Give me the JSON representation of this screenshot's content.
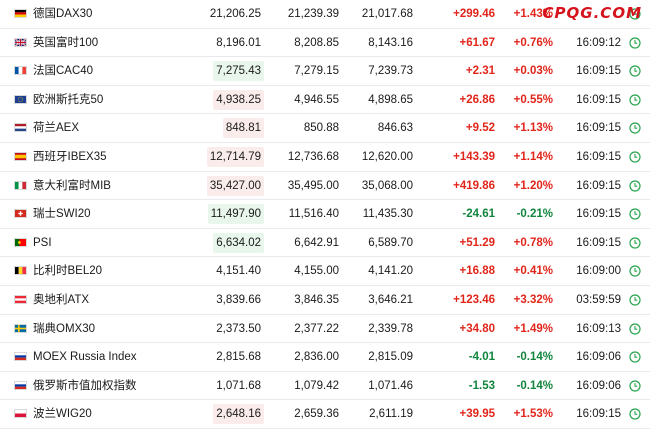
{
  "watermark": "CPQG.COM",
  "colors": {
    "up": "#e1251b",
    "down": "#11853d",
    "clock": "#2aa44f",
    "up_highlight": "#e9f6ec",
    "down_highlight": "#fbecec"
  },
  "rows": [
    {
      "flag": "de",
      "name": "德国DAX30",
      "last": "21,206.25",
      "high": "21,239.39",
      "low": "21,017.68",
      "change": "+299.46",
      "pct": "+1.43%",
      "time": "",
      "dir": "up",
      "hl": "none"
    },
    {
      "flag": "gb",
      "name": "英国富时100",
      "last": "8,196.01",
      "high": "8,208.85",
      "low": "8,143.16",
      "change": "+61.67",
      "pct": "+0.76%",
      "time": "16:09:12",
      "dir": "up",
      "hl": "none"
    },
    {
      "flag": "fr",
      "name": "法国CAC40",
      "last": "7,275.43",
      "high": "7,279.15",
      "low": "7,239.73",
      "change": "+2.31",
      "pct": "+0.03%",
      "time": "16:09:15",
      "dir": "up",
      "hl": "up"
    },
    {
      "flag": "eu",
      "name": "欧洲斯托克50",
      "last": "4,938.25",
      "high": "4,946.55",
      "low": "4,898.65",
      "change": "+26.86",
      "pct": "+0.55%",
      "time": "16:09:15",
      "dir": "up",
      "hl": "down"
    },
    {
      "flag": "nl",
      "name": "荷兰AEX",
      "last": "848.81",
      "high": "850.88",
      "low": "846.63",
      "change": "+9.52",
      "pct": "+1.13%",
      "time": "16:09:15",
      "dir": "up",
      "hl": "down"
    },
    {
      "flag": "es",
      "name": "西班牙IBEX35",
      "last": "12,714.79",
      "high": "12,736.68",
      "low": "12,620.00",
      "change": "+143.39",
      "pct": "+1.14%",
      "time": "16:09:15",
      "dir": "up",
      "hl": "down"
    },
    {
      "flag": "it",
      "name": "意大利富时MIB",
      "last": "35,427.00",
      "high": "35,495.00",
      "low": "35,068.00",
      "change": "+419.86",
      "pct": "+1.20%",
      "time": "16:09:15",
      "dir": "up",
      "hl": "down"
    },
    {
      "flag": "ch",
      "name": "瑞士SWI20",
      "last": "11,497.90",
      "high": "11,516.40",
      "low": "11,435.30",
      "change": "-24.61",
      "pct": "-0.21%",
      "time": "16:09:15",
      "dir": "down",
      "hl": "up"
    },
    {
      "flag": "pt",
      "name": "PSI",
      "last": "6,634.02",
      "high": "6,642.91",
      "low": "6,589.70",
      "change": "+51.29",
      "pct": "+0.78%",
      "time": "16:09:15",
      "dir": "up",
      "hl": "up"
    },
    {
      "flag": "be",
      "name": "比利时BEL20",
      "last": "4,151.40",
      "high": "4,155.00",
      "low": "4,141.20",
      "change": "+16.88",
      "pct": "+0.41%",
      "time": "16:09:00",
      "dir": "up",
      "hl": "none"
    },
    {
      "flag": "at",
      "name": "奥地利ATX",
      "last": "3,839.66",
      "high": "3,846.35",
      "low": "3,646.21",
      "change": "+123.46",
      "pct": "+3.32%",
      "time": "03:59:59",
      "dir": "up",
      "hl": "none"
    },
    {
      "flag": "se",
      "name": "瑞典OMX30",
      "last": "2,373.50",
      "high": "2,377.22",
      "low": "2,339.78",
      "change": "+34.80",
      "pct": "+1.49%",
      "time": "16:09:13",
      "dir": "up",
      "hl": "none"
    },
    {
      "flag": "ru",
      "name": "MOEX Russia Index",
      "last": "2,815.68",
      "high": "2,836.00",
      "low": "2,815.09",
      "change": "-4.01",
      "pct": "-0.14%",
      "time": "16:09:06",
      "dir": "down",
      "hl": "none"
    },
    {
      "flag": "ru",
      "name": "俄罗斯市值加权指数",
      "last": "1,071.68",
      "high": "1,079.42",
      "low": "1,071.46",
      "change": "-1.53",
      "pct": "-0.14%",
      "time": "16:09:06",
      "dir": "down",
      "hl": "none"
    },
    {
      "flag": "pl",
      "name": "波兰WIG20",
      "last": "2,648.16",
      "high": "2,659.36",
      "low": "2,611.19",
      "change": "+39.95",
      "pct": "+1.53%",
      "time": "16:09:15",
      "dir": "up",
      "hl": "down"
    }
  ]
}
